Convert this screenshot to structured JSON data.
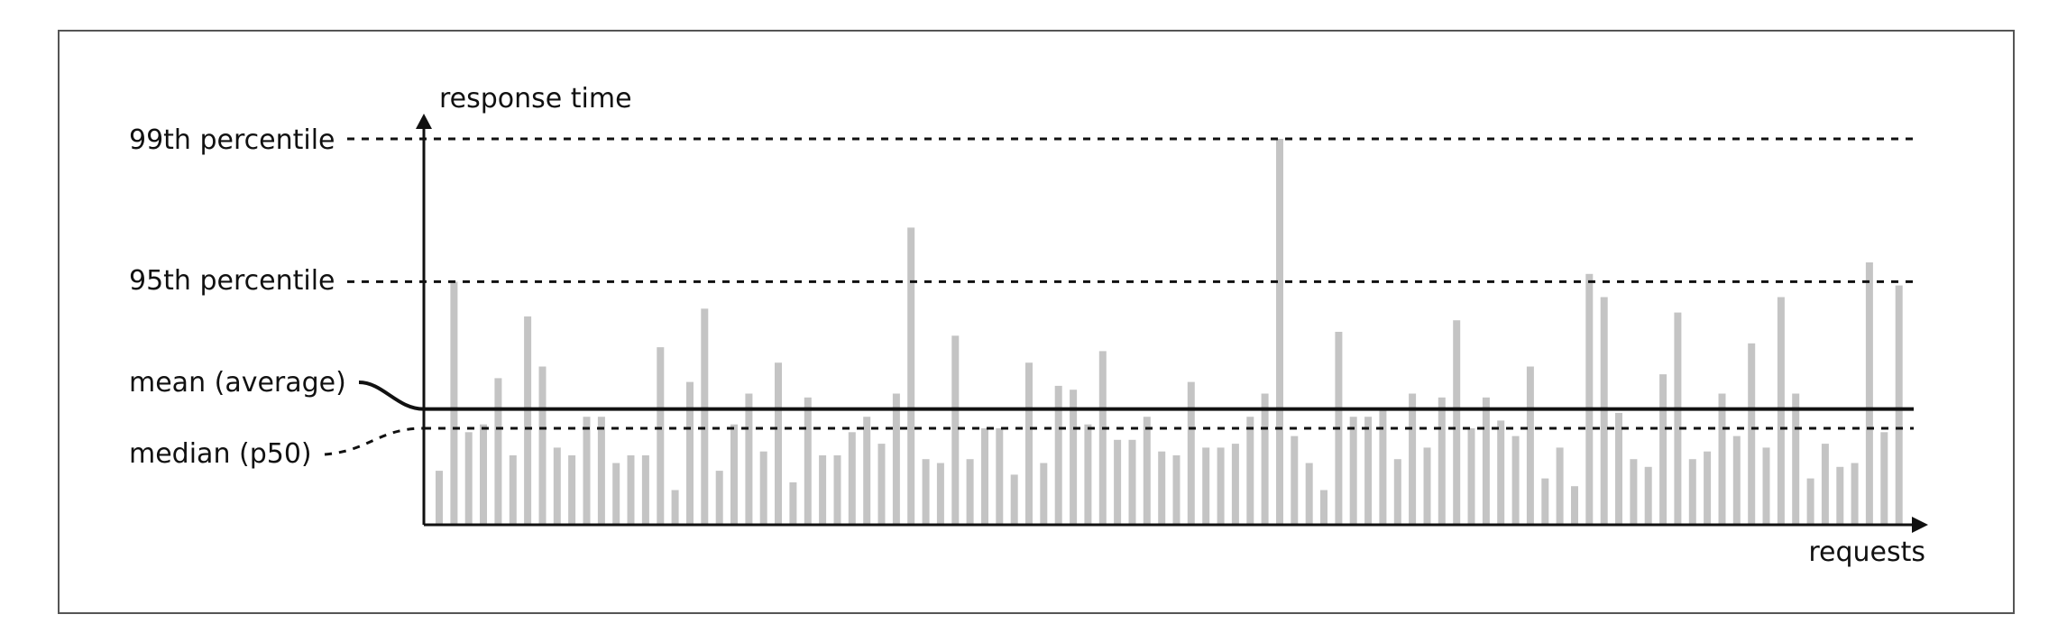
{
  "chart_data": {
    "type": "bar",
    "xlabel": "requests",
    "ylabel": "response time",
    "ylim": [
      0,
      100
    ],
    "grid": false,
    "reference_lines": [
      {
        "label": "99th percentile",
        "value": 100,
        "style": "dashed"
      },
      {
        "label": "95th percentile",
        "value": 63,
        "style": "dashed"
      },
      {
        "label": "mean (average)",
        "value": 30,
        "style": "solid"
      },
      {
        "label": "median (p50)",
        "value": 25,
        "style": "dashed"
      }
    ],
    "values": [
      14,
      63,
      24,
      26,
      38,
      18,
      54,
      41,
      20,
      18,
      28,
      28,
      16,
      18,
      18,
      46,
      9,
      37,
      56,
      14,
      26,
      34,
      19,
      42,
      11,
      33,
      18,
      18,
      24,
      28,
      21,
      34,
      77,
      17,
      16,
      49,
      17,
      25,
      25,
      13,
      42,
      16,
      36,
      35,
      26,
      45,
      22,
      22,
      28,
      19,
      18,
      37,
      20,
      20,
      21,
      28,
      34,
      100,
      23,
      16,
      9,
      50,
      28,
      28,
      30,
      17,
      34,
      20,
      33,
      53,
      25,
      33,
      27,
      23,
      41,
      12,
      20,
      10,
      65,
      59,
      29,
      17,
      15,
      39,
      55,
      17,
      19,
      34,
      23,
      47,
      20,
      59,
      34,
      12,
      21,
      15,
      16,
      68,
      24,
      62
    ]
  }
}
